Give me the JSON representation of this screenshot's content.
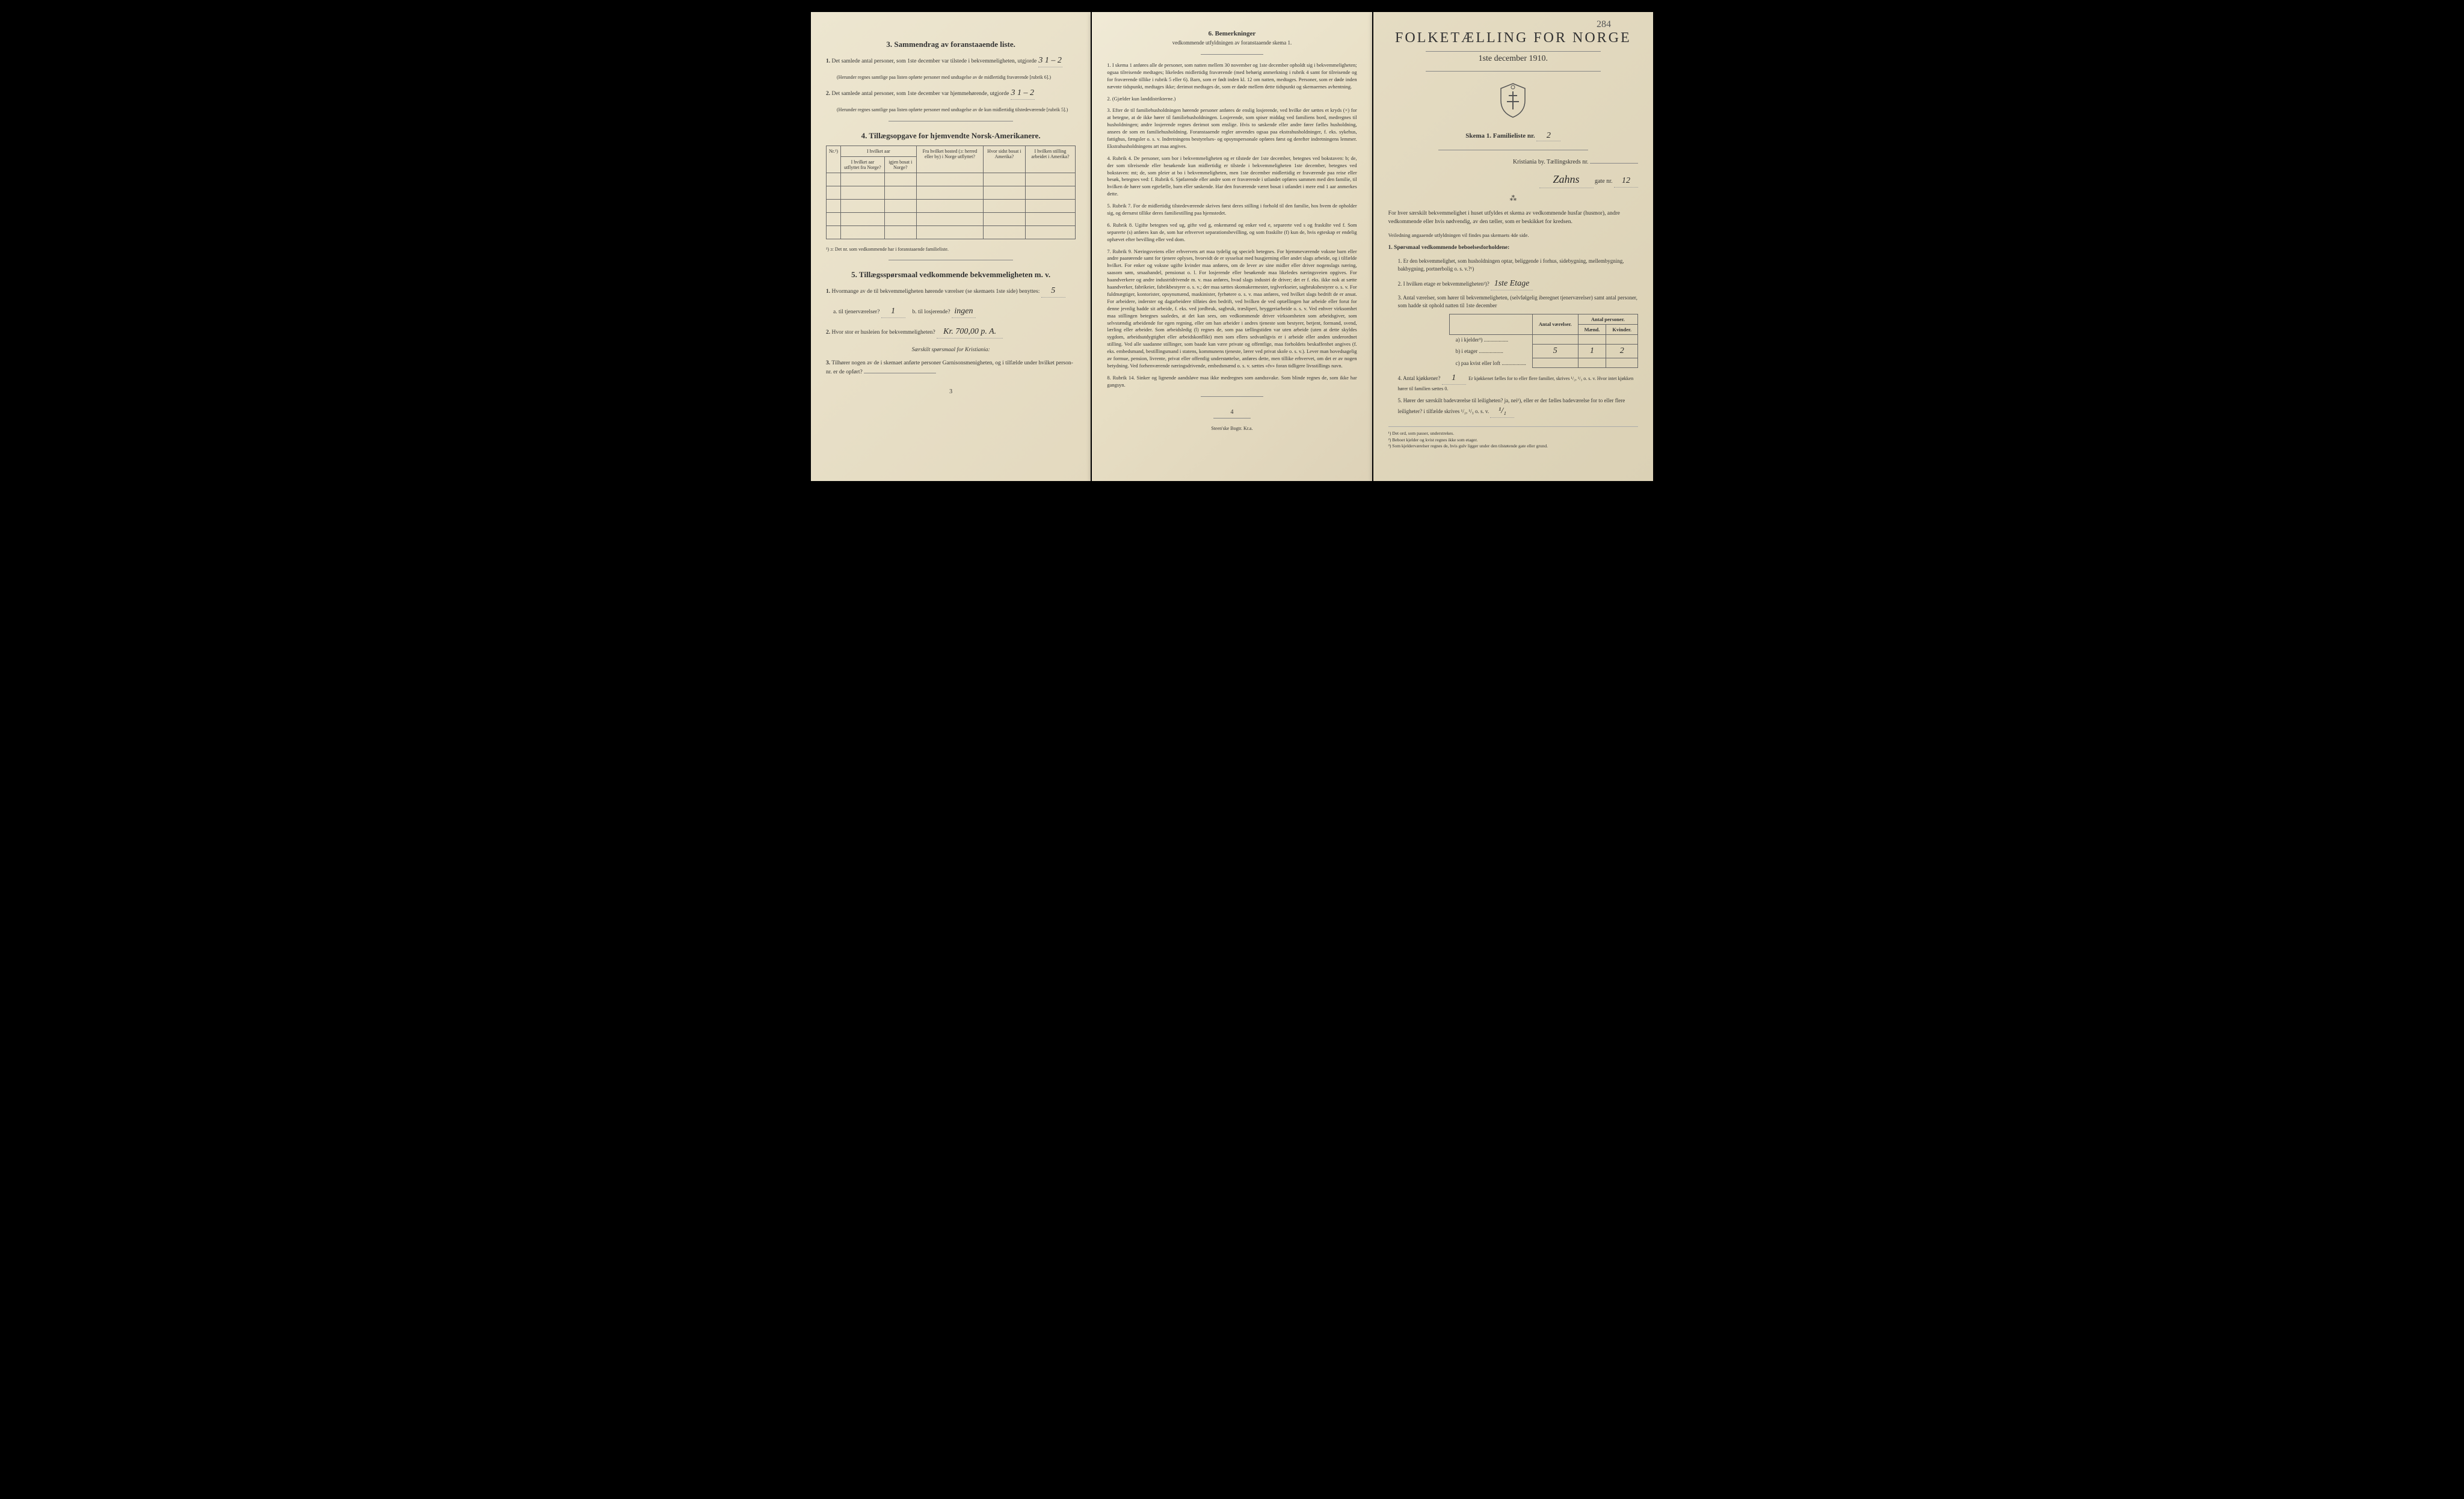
{
  "page1": {
    "section3": {
      "heading": "3.   Sammendrag av foranstaaende liste.",
      "item1_text": "Det samlede antal personer, som 1ste december var tilstede i bekvemmeligheten, utgjorde",
      "item1_value": "3        1 – 2",
      "item1_note": "(Herunder regnes samtlige paa listen opførte personer med undtagelse av de midlertidig fraværende [rubrik 6].)",
      "item2_text": "Det samlede antal personer, som 1ste december var hjemmehørende, utgjorde",
      "item2_value": "3       1 – 2",
      "item2_note": "(Herunder regnes samtlige paa listen opførte personer med undtagelse av de kun midlertidig tilstedeværende [rubrik 5].)"
    },
    "section4": {
      "heading": "4.   Tillægsopgave for hjemvendte Norsk-Amerikanere.",
      "table_headers": [
        "Nr.¹)",
        "I hvilket aar utflyttet fra Norge?",
        "igjen bosat i Norge?",
        "Fra hvilket bosted (ɔ: herred eller by) i Norge utflyttet?",
        "Hvor sidst bosat i Amerika?",
        "I hvilken stilling arbeidet i Amerika?"
      ],
      "sub_header_combined": "I hvilket aar",
      "footnote": "¹) ɔ: Det nr. som vedkommende har i foranstaaende familieliste."
    },
    "section5": {
      "heading": "5.   Tillægsspørsmaal vedkommende bekvemmelig­heten m. v.",
      "item1_text": "Hvormange av de til bekvemmeligheten hørende værelser (se skemaets 1ste side) benyttes:",
      "item1_value": "5",
      "item1a_label": "a. til tjenerværelser?",
      "item1a_value": "1",
      "item1b_label": "b. til losjerende?",
      "item1b_value": "ingen",
      "item2_text": "Hvor stor er husleien for bekvemmeligheten?",
      "item2_value": "Kr. 700,00 p. A.",
      "special_note": "Særskilt spørsmaal for Kristiania:",
      "item3_text": "Tilhører nogen av de i skemaet anførte personer Garnisonsmenigheten, og i tilfælde under hvilket person-nr. er de opført?"
    },
    "page_number": "3"
  },
  "page2": {
    "section6": {
      "heading": "6.   Bemerkninger",
      "subtitle": "vedkommende utfyldningen av foranstaaende skema 1.",
      "remarks": [
        "I skema 1 anføres alle de personer, som natten mellem 30 november og 1ste december opholdt sig i bekvemmeligheten; ogsaa tilreisende medtages; likeledes midlertidig fraværende (med behørig anmerkning i rubrik 4 samt for tilreisende og for fraværende tillike i rubrik 5 eller 6). Barn, som er født inden kl. 12 om natten, medtages. Personer, som er døde inden nævnte tidspunkt, medtages ikke; derimot medtages de, som er døde mellem dette tidspunkt og skemaernes avhentning.",
        "(Gjælder kun landdistrikterne.)",
        "Efter de til familiehusholdningen hørende personer anføres de enslig losjerende, ved hvilke der sættes et kryds (×) for at betegne, at de ikke hører til familiehusholdningen. Losjerende, som spiser middag ved familiens bord, medregnes til husholdningen; andre losjerende regnes derimot som enslige. Hvis to søskende eller andre fører fælles husholdning, ansees de som en familiehusholdning.\nForanstaaende regler anvendes ogsaa paa ekstrahusholdninger, f. eks. sykehus, fattighus, fængsler o. s. v. Indretningens bestyrelses- og opsynspersonale opføres først og derefter indretningens lemmer. Ekstrahusholdningens art maa angives.",
        "Rubrik 4. De personer, som bor i bekvemmeligheten og er tilstede der 1ste december, betegnes ved bokstaven: b; de, der som tilreisende eller besøkende kun midlertidig er tilstede i bekvemmeligheten 1ste december, betegnes ved bokstaven: mt; de, som pleier at bo i bekvemmeligheten, men 1ste december midlertidig er fraværende paa reise eller besøk, betegnes ved: f.\nRubrik 6. Sjøfarende eller andre som er fraværende i utlandet opføres sammen med den familie, til hvilken de hører som egtefælle, barn eller søskende.\nHar den fraværende været bosat i utlandet i mere end 1 aar anmerkes dette.",
        "Rubrik 7. For de midlertidig tilstedeværende skrives først deres stilling i forhold til den familie, hos hvem de opholder sig, og dernæst tillike deres familiestilling paa hjemstedet.",
        "Rubrik 8. Ugifte betegnes ved ug, gifte ved g, enkemænd og enker ved e, separerte ved s og fraskilte ved f. Som separerte (s) anføres kun de, som har erhvervet separationsbevilling, og som fraskilte (f) kun de, hvis egteskap er endelig ophævet efter bevilling eller ved dom.",
        "Rubrik 9. Næringsveiens eller erhvervets art maa tydelig og specielt betegnes.\nFor hjemmeværende voksne barn eller andre paarørende samt for tjenere oplyses, hvorvidt de er sysselsat med husgjerning eller andet slags arbeide, og i tilfælde hvilket. For enker og voksne ugifte kvinder maa anføres, om de lever av sine midler eller driver nogenslags næring, saasom søm, smaahandel, pensionat o. l.\nFor losjerende eller besøkende maa likeledes næringsveien opgives.\nFor haandverkere og andre industridrivende m. v. maa anføres, hvad slags industri de driver; det er f. eks. ikke nok at sætte haandverker, fabrikeier, fabrikbestyrer o. s. v.; der maa sættes skomakermester, teglverkseier, sagbruksbestyrer o. s. v.\nFor fuldmægtiger, kontorister, opsynsmænd, maskinister, fyrbøtere o. s. v. maa anføres, ved hvilket slags bedrift de er ansat.\nFor arbeidere, inderster og dagarbeidere tilføies den bedrift, ved hvilken de ved optællingen har arbeide eller forut for denne jevnlig hadde sit arbeide, f. eks. ved jordbruk, sagbruk, træsliperi, bryggeriarbeide o. s. v.\nVed enhver virksomhet maa stillingen betegnes saaledes, at det kan sees, om vedkommende driver virksomheten som arbeidsgiver, som selvstændig arbeidende for egen regning, eller om han arbeider i andres tjeneste som bestyrer, betjent, formand, svend, lærling eller arbeider.\nSom arbeidsledig (l) regnes de, som paa tællingstiden var uten arbeide (uten at dette skyldes sygdom, arbeidsutdygtighet eller arbeidskonflikt) men som ellers sedvanligvis er i arbeide eller anden underordnet stilling.\nVed alle saadanne stillinger, som baade kan være private og offentlige, maa forholdets beskaffenhet angives (f. eks. embedsmand, bestillingsmand i statens, kommunens tjeneste, lærer ved privat skole o. s. v.).\nLever man hovedsagelig av formue, pension, livrente, privat eller offentlig understøttelse, anføres dette, men tillike erhvervet, om det er av nogen betydning.\nVed forhenværende næringsdrivende, embedsmænd o. s. v. sættes «fv» foran tidligere livsstillings navn.",
        "Rubrik 14. Sinker og lignende aandsløve maa ikke medregnes som aandssvake. Som blinde regnes de, som ikke har gangsyn."
      ]
    },
    "page_number": "4",
    "printer": "Steen'ske Bogtr.  Kr.a."
  },
  "page3": {
    "annotation": "284",
    "title": "FOLKETÆLLING FOR NORGE",
    "subtitle": "1ste december 1910.",
    "skema_label": "Skema 1.   Familieliste nr.",
    "skema_value": "2",
    "city_label": "Kristiania by.   Tællingskreds nr.",
    "city_value": "",
    "street_handwritten": "Zahns",
    "street_suffix": "gate nr.",
    "street_nr": "12",
    "intro_text": "For hver særskilt bekvemmelighet i huset utfyldes et skema av vedkommende husfar (husmor), andre vedkommende eller hvis nødvendig, av den tæller, som er beskikket for kredsen.",
    "guidance_note": "Veiledning angaaende utfyldningen vil findes paa skemaets 4de side.",
    "section1_heading": "1. Spørsmaal vedkommende beboelsesforholdene:",
    "q1": "Er den bekvemmelighet, som husholdningen optar, beliggende i forhus, sidebygning, mellembygning, bakbygning, portnerbolig o. s. v.?¹)",
    "q2": "I hvilken etage er bekvemmeligheten²)?",
    "q2_value": "1ste Etage",
    "q3": "Antal værelser, som hører til bekvemmeligheten, (selvfølgelig iberegnet tjenerværelser) samt antal personer, som hadde sit ophold natten til 1ste december",
    "count_table": {
      "headers": [
        "Antal værelser.",
        "Antal personer."
      ],
      "sub_headers": [
        "Mænd.",
        "Kvinder."
      ],
      "rows": [
        {
          "label": "a) i kjelder³)",
          "vaerelser": "",
          "maend": "",
          "kvinder": ""
        },
        {
          "label": "b) i etager",
          "vaerelser": "5",
          "maend": "1",
          "kvinder": "2"
        },
        {
          "label": "c) paa kvist eller loft",
          "vaerelser": "",
          "maend": "",
          "kvinder": ""
        }
      ]
    },
    "q4": "Antal kjøkkener?",
    "q4_value": "1",
    "q4_extra": "Er kjøkkenet fælles for to eller flere familier, skrives ¹/₂, ¹/₃ o. s. v.  Hvor intet kjøkken hører til familien sættes 0.",
    "q5": "Hører der særskilt badeværelse til leiligheten?  ja,  nei¹),  eller er der fælles badeværelse for to eller flere leiligheter?  i tilfælde skrives ¹/₂, ¹/₃ o. s. v.",
    "q5_value": "¹/₁",
    "footnotes": [
      "¹) Det ord, som passer, understrekes.",
      "²) Beboet kjelder og kvist regnes ikke som etager.",
      "³) Som kjelderværelser regnes de, hvis gulv ligger under den tilstøtende gate eller grund."
    ]
  },
  "colors": {
    "page_bg": "#e8dfc5",
    "text": "#333333",
    "border": "#666666",
    "handwriting": "#2a2a2a"
  }
}
